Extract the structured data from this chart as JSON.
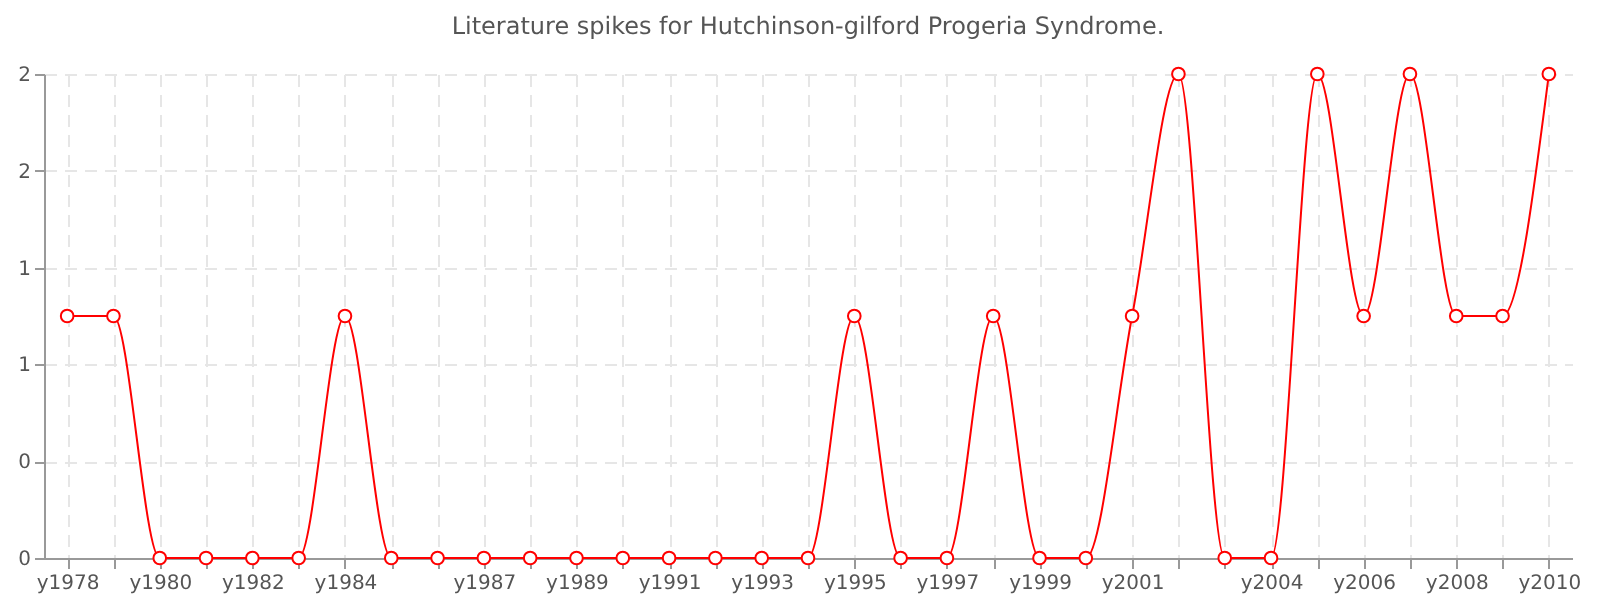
{
  "chart_data": {
    "type": "line",
    "title": "Literature spikes for Hutchinson-gilford Progeria Syndrome.",
    "categories": [
      "y1978",
      null,
      "y1980",
      null,
      "y1982",
      null,
      "y1984",
      null,
      null,
      "y1987",
      null,
      "y1989",
      null,
      "y1991",
      null,
      "y1993",
      null,
      "y1995",
      null,
      "y1997",
      null,
      "y1999",
      null,
      "y2001",
      null,
      null,
      "y2004",
      null,
      "y2006",
      null,
      "y2008",
      null,
      "y2010"
    ],
    "series": [
      {
        "color": "#ff0000",
        "values": [
          1,
          1,
          0,
          0,
          0,
          0,
          1,
          0,
          0,
          0,
          0,
          0,
          0,
          0,
          0,
          0,
          0,
          1,
          0,
          0,
          1,
          0,
          0,
          1,
          2,
          0,
          0,
          2,
          1,
          2,
          1,
          1,
          2
        ]
      }
    ],
    "ylim": [
      0,
      2
    ],
    "yticks": [
      {
        "value": 0,
        "label": "0"
      },
      {
        "value": 0.4,
        "label": "0"
      },
      {
        "value": 0.8,
        "label": "1"
      },
      {
        "value": 1.2,
        "label": "1"
      },
      {
        "value": 1.6,
        "label": "2"
      },
      {
        "value": 2,
        "label": "2"
      }
    ],
    "grid": true,
    "marker": "circle",
    "line_style": "solid"
  }
}
